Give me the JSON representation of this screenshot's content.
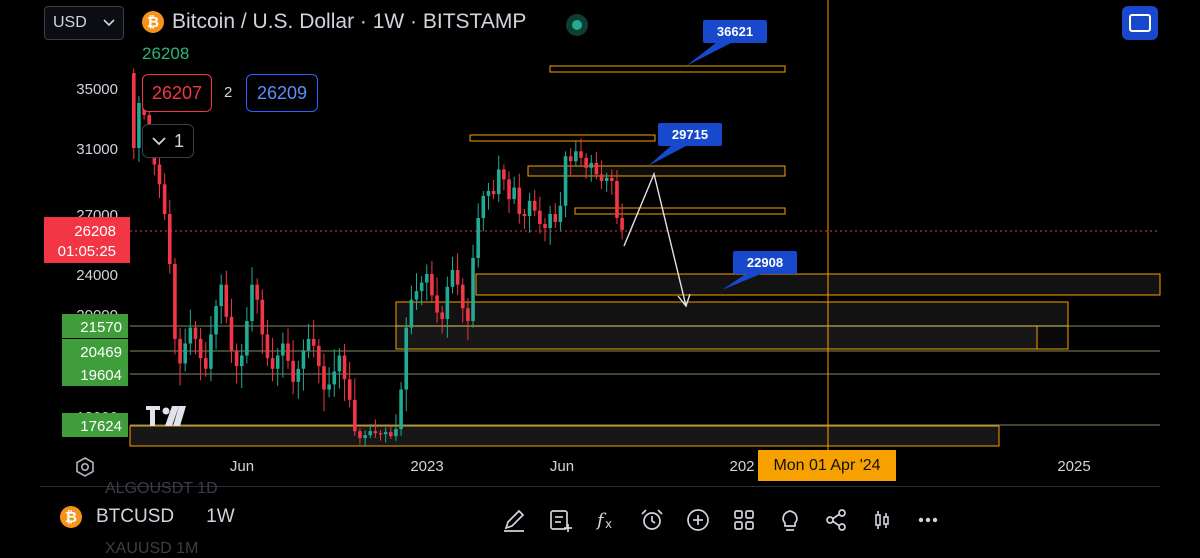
{
  "header": {
    "currency": "USD",
    "symbol_title": "Bitcoin / U.S. Dollar · 1W · BITSTAMP",
    "last_price": "26208",
    "bid": "26207",
    "spread": "2",
    "ask": "26209",
    "collapse_count": "1"
  },
  "price_scale": {
    "labels": [
      "35000",
      "31000",
      "27000",
      "24000",
      "20000",
      "13000"
    ],
    "current_price": "26208",
    "countdown": "01:05:25",
    "level_badges": [
      "21570",
      "20469",
      "19604",
      "17624"
    ]
  },
  "time_axis": {
    "labels": [
      "Jun",
      "2023",
      "Jun",
      "202",
      "2025"
    ],
    "cursor_label": "Mon 01 Apr '24"
  },
  "annotations": [
    "36621",
    "29715",
    "22908"
  ],
  "chart_data": {
    "type": "candlestick",
    "timeframe": "1W",
    "current_price": 26208,
    "horizontal_levels": [
      21570,
      20469,
      19604,
      17624
    ],
    "zone_labels": [
      36621,
      29715,
      22908
    ],
    "y_axis_ticks": [
      35000,
      31000,
      27000,
      24000,
      20000
    ],
    "ylim": [
      12000,
      40000
    ],
    "colors": {
      "up": "#22ab94",
      "down": "#f23645",
      "zone": "#f7a100",
      "label": "#1848cc"
    }
  },
  "bottom_bar": {
    "symbol": "BTCUSD",
    "timeframe": "1W",
    "ghost_above": "ALGOUSDT  1D",
    "ghost_below": "XAUUSD  1M",
    "tools": [
      "pencil-icon",
      "add-note-icon",
      "fx-icon",
      "alarm-icon",
      "add-circle-icon",
      "grid-icon",
      "lightbulb-icon",
      "share-icon",
      "candles-icon",
      "more-icon"
    ]
  }
}
